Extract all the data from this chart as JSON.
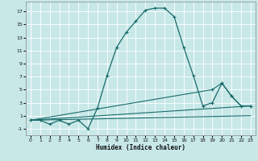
{
  "xlabel": "Humidex (Indice chaleur)",
  "background_color": "#c8e8e8",
  "grid_color": "#c0d8d8",
  "line_color": "#1a6b6b",
  "xlim": [
    -0.5,
    23.5
  ],
  "ylim": [
    -2.0,
    18.5
  ],
  "xticks": [
    0,
    1,
    2,
    3,
    4,
    5,
    6,
    7,
    8,
    9,
    10,
    11,
    12,
    13,
    14,
    15,
    16,
    17,
    18,
    19,
    20,
    21,
    22,
    23
  ],
  "yticks": [
    -1,
    1,
    3,
    5,
    7,
    9,
    11,
    13,
    15,
    17
  ],
  "main_x": [
    0,
    1,
    2,
    3,
    4,
    5,
    6,
    7,
    8,
    9,
    10,
    11,
    12,
    13,
    14,
    15,
    16,
    17,
    18,
    19,
    20,
    21,
    22,
    23
  ],
  "main_y": [
    0.3,
    0.3,
    -0.3,
    0.3,
    -0.3,
    0.3,
    -1.0,
    2.2,
    7.2,
    11.5,
    13.8,
    15.5,
    17.2,
    17.5,
    17.5,
    16.2,
    11.5,
    7.2,
    2.5,
    3.0,
    6.0,
    4.0,
    2.5,
    2.5
  ],
  "line1_x": [
    0,
    19,
    20,
    21,
    22,
    23
  ],
  "line1_y": [
    0.3,
    5.0,
    6.0,
    4.0,
    2.5,
    2.5
  ],
  "line2_x": [
    0,
    23
  ],
  "line2_y": [
    0.3,
    2.5
  ],
  "line3_x": [
    0,
    23
  ],
  "line3_y": [
    0.3,
    1.0
  ]
}
